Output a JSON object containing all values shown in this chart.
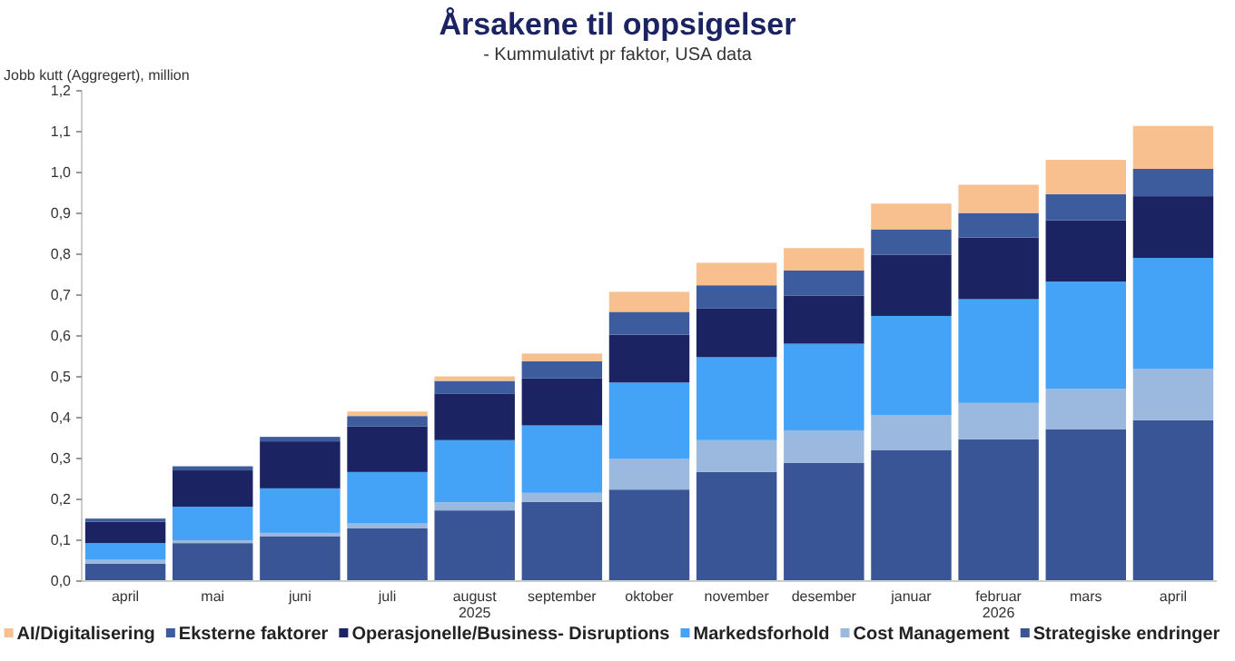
{
  "chart_data": {
    "type": "bar",
    "stacked": true,
    "title": "Årsakene til oppsigelser",
    "subtitle": "- Kummulativt pr faktor, USA data",
    "ylabel": "Jobb kutt (Aggregert), million",
    "categories": [
      "april",
      "mai",
      "juni",
      "juli",
      "august",
      "september",
      "oktober",
      "november",
      "desember",
      "januar",
      "februar",
      "mars",
      "april"
    ],
    "ylim": [
      0,
      1.2
    ],
    "yticks": [
      {
        "value": 0,
        "label": "0,0"
      },
      {
        "value": 0.1,
        "label": "0,1"
      },
      {
        "value": 0.2,
        "label": "0,2"
      },
      {
        "value": 0.3,
        "label": "0,3"
      },
      {
        "value": 0.4,
        "label": "0,4"
      },
      {
        "value": 0.5,
        "label": "0,5"
      },
      {
        "value": 0.6,
        "label": "0,6"
      },
      {
        "value": 0.7,
        "label": "0,7"
      },
      {
        "value": 0.8,
        "label": "0,8"
      },
      {
        "value": 0.9,
        "label": "0,9"
      },
      {
        "value": 1.0,
        "label": "1,0"
      },
      {
        "value": 1.1,
        "label": "1,1"
      },
      {
        "value": 1.2,
        "label": "1,2"
      }
    ],
    "grid": false,
    "legend": "bottom",
    "annotations": [
      "2025",
      "2026"
    ],
    "series": [
      {
        "name": "Strategiske endringer",
        "color": "#3a5595",
        "values": [
          0.043,
          0.093,
          0.11,
          0.129,
          0.173,
          0.194,
          0.224,
          0.267,
          0.289,
          0.321,
          0.347,
          0.372,
          0.394
        ]
      },
      {
        "name": "Cost Management",
        "color": "#9bb9df",
        "values": [
          0.009,
          0.007,
          0.008,
          0.012,
          0.02,
          0.022,
          0.075,
          0.078,
          0.08,
          0.085,
          0.089,
          0.099,
          0.125
        ]
      },
      {
        "name": "Markedsforhold",
        "color": "#44a2f7",
        "values": [
          0.041,
          0.082,
          0.109,
          0.126,
          0.152,
          0.165,
          0.187,
          0.203,
          0.212,
          0.243,
          0.254,
          0.262,
          0.272
        ]
      },
      {
        "name": "Operasjonelle/Business- Disruptions",
        "color": "#1b2363",
        "values": [
          0.052,
          0.089,
          0.115,
          0.112,
          0.113,
          0.115,
          0.117,
          0.119,
          0.118,
          0.15,
          0.151,
          0.15,
          0.151
        ]
      },
      {
        "name": "Eksterne faktorer",
        "color": "#3c5c9e",
        "values": [
          0.008,
          0.01,
          0.011,
          0.025,
          0.032,
          0.042,
          0.056,
          0.057,
          0.061,
          0.062,
          0.06,
          0.064,
          0.067
        ]
      },
      {
        "name": "AI/Digitalisering",
        "color": "#f8c08f",
        "values": [
          0,
          0,
          0,
          0.011,
          0.011,
          0.019,
          0.049,
          0.055,
          0.055,
          0.063,
          0.069,
          0.084,
          0.105
        ]
      }
    ]
  }
}
